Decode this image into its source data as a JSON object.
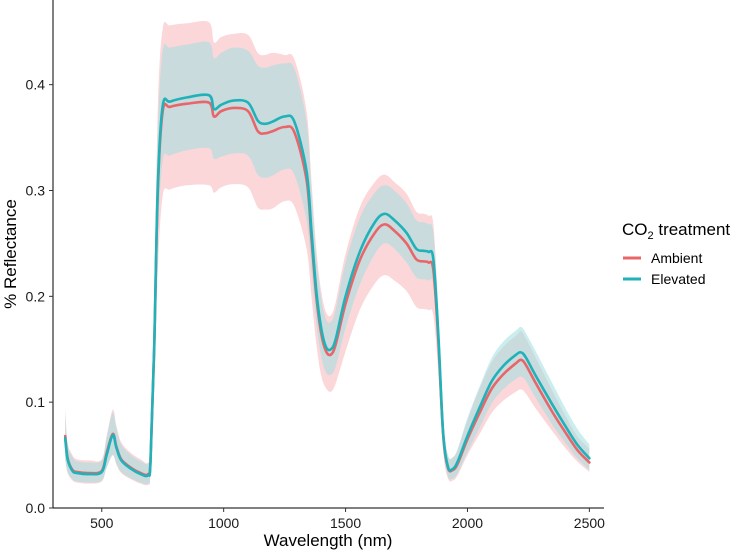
{
  "chart_data": {
    "type": "line",
    "title": "",
    "xlabel": "Wavelength (nm)",
    "ylabel": "% Reflectance",
    "xlim": [
      300,
      2560
    ],
    "ylim": [
      0,
      0.48
    ],
    "x_ticks": [
      500,
      1000,
      1500,
      2000,
      2500
    ],
    "y_ticks": [
      0.0,
      0.1,
      0.2,
      0.3,
      0.4
    ],
    "x_tick_labels": [
      "500",
      "1000",
      "1500",
      "2000",
      "2500"
    ],
    "y_tick_labels": [
      "0.0",
      "0.1",
      "0.2",
      "0.3",
      "0.4"
    ],
    "grid": false,
    "legend": {
      "title_main": "CO",
      "title_sub": "2",
      "title_rest": " treatment",
      "placement": "right",
      "entries": [
        "Ambient",
        "Elevated"
      ]
    },
    "x": [
      350,
      360,
      380,
      400,
      450,
      500,
      520,
      545,
      560,
      580,
      620,
      660,
      690,
      700,
      715,
      730,
      750,
      780,
      850,
      940,
      960,
      990,
      1040,
      1100,
      1140,
      1170,
      1200,
      1250,
      1290,
      1340,
      1360,
      1380,
      1400,
      1420,
      1440,
      1460,
      1500,
      1560,
      1620,
      1660,
      1700,
      1750,
      1790,
      1820,
      1840,
      1860,
      1880,
      1900,
      1920,
      1940,
      1960,
      2000,
      2050,
      2100,
      2150,
      2200,
      2220,
      2240,
      2280,
      2350,
      2400,
      2450,
      2500
    ],
    "series": [
      {
        "name": "Ambient",
        "color": "#E8666A",
        "band_color": "#F8B7B9",
        "mean": [
          0.068,
          0.047,
          0.036,
          0.034,
          0.033,
          0.035,
          0.052,
          0.07,
          0.058,
          0.046,
          0.038,
          0.033,
          0.032,
          0.045,
          0.15,
          0.3,
          0.375,
          0.379,
          0.382,
          0.383,
          0.37,
          0.375,
          0.378,
          0.375,
          0.356,
          0.354,
          0.356,
          0.36,
          0.355,
          0.31,
          0.255,
          0.2,
          0.165,
          0.148,
          0.145,
          0.155,
          0.193,
          0.235,
          0.26,
          0.268,
          0.262,
          0.25,
          0.235,
          0.233,
          0.232,
          0.225,
          0.16,
          0.07,
          0.038,
          0.036,
          0.042,
          0.065,
          0.09,
          0.113,
          0.127,
          0.137,
          0.14,
          0.135,
          0.118,
          0.09,
          0.072,
          0.055,
          0.043
        ],
        "upper": [
          0.095,
          0.062,
          0.05,
          0.046,
          0.045,
          0.046,
          0.068,
          0.093,
          0.078,
          0.062,
          0.052,
          0.046,
          0.043,
          0.06,
          0.2,
          0.38,
          0.453,
          0.456,
          0.458,
          0.459,
          0.44,
          0.445,
          0.448,
          0.447,
          0.43,
          0.428,
          0.43,
          0.428,
          0.424,
          0.375,
          0.31,
          0.245,
          0.205,
          0.185,
          0.182,
          0.195,
          0.24,
          0.285,
          0.308,
          0.315,
          0.308,
          0.297,
          0.28,
          0.278,
          0.276,
          0.268,
          0.19,
          0.088,
          0.05,
          0.048,
          0.055,
          0.083,
          0.113,
          0.138,
          0.153,
          0.163,
          0.167,
          0.16,
          0.142,
          0.11,
          0.088,
          0.068,
          0.056
        ],
        "lower": [
          0.046,
          0.033,
          0.026,
          0.024,
          0.023,
          0.025,
          0.038,
          0.05,
          0.041,
          0.033,
          0.027,
          0.023,
          0.022,
          0.032,
          0.11,
          0.225,
          0.295,
          0.301,
          0.305,
          0.305,
          0.298,
          0.303,
          0.306,
          0.303,
          0.284,
          0.282,
          0.283,
          0.29,
          0.285,
          0.245,
          0.2,
          0.155,
          0.125,
          0.113,
          0.11,
          0.118,
          0.148,
          0.188,
          0.212,
          0.22,
          0.215,
          0.205,
          0.19,
          0.188,
          0.187,
          0.182,
          0.13,
          0.054,
          0.028,
          0.026,
          0.031,
          0.05,
          0.07,
          0.09,
          0.102,
          0.11,
          0.112,
          0.108,
          0.094,
          0.072,
          0.057,
          0.044,
          0.034
        ]
      },
      {
        "name": "Elevated",
        "color": "#20B2B8",
        "band_color": "#A0DEE0",
        "mean": [
          0.066,
          0.046,
          0.035,
          0.033,
          0.032,
          0.034,
          0.05,
          0.069,
          0.057,
          0.045,
          0.037,
          0.032,
          0.031,
          0.044,
          0.152,
          0.305,
          0.38,
          0.384,
          0.388,
          0.39,
          0.377,
          0.381,
          0.385,
          0.383,
          0.366,
          0.363,
          0.365,
          0.37,
          0.365,
          0.318,
          0.262,
          0.205,
          0.17,
          0.152,
          0.15,
          0.16,
          0.2,
          0.243,
          0.27,
          0.278,
          0.272,
          0.26,
          0.245,
          0.243,
          0.242,
          0.235,
          0.166,
          0.072,
          0.039,
          0.037,
          0.044,
          0.068,
          0.095,
          0.12,
          0.135,
          0.145,
          0.147,
          0.142,
          0.125,
          0.097,
          0.078,
          0.06,
          0.047
        ],
        "upper": [
          0.088,
          0.06,
          0.048,
          0.044,
          0.043,
          0.045,
          0.066,
          0.09,
          0.075,
          0.06,
          0.05,
          0.044,
          0.042,
          0.058,
          0.185,
          0.355,
          0.432,
          0.435,
          0.438,
          0.44,
          0.425,
          0.43,
          0.435,
          0.432,
          0.418,
          0.416,
          0.418,
          0.42,
          0.415,
          0.365,
          0.3,
          0.237,
          0.198,
          0.178,
          0.176,
          0.188,
          0.232,
          0.275,
          0.298,
          0.305,
          0.3,
          0.288,
          0.272,
          0.27,
          0.268,
          0.26,
          0.185,
          0.085,
          0.05,
          0.048,
          0.056,
          0.085,
          0.115,
          0.142,
          0.158,
          0.168,
          0.171,
          0.165,
          0.148,
          0.117,
          0.095,
          0.075,
          0.06
        ],
        "lower": [
          0.046,
          0.034,
          0.027,
          0.025,
          0.024,
          0.026,
          0.038,
          0.05,
          0.042,
          0.034,
          0.028,
          0.024,
          0.023,
          0.033,
          0.12,
          0.255,
          0.328,
          0.333,
          0.338,
          0.34,
          0.33,
          0.332,
          0.335,
          0.333,
          0.315,
          0.312,
          0.314,
          0.32,
          0.315,
          0.272,
          0.225,
          0.175,
          0.143,
          0.128,
          0.126,
          0.134,
          0.17,
          0.212,
          0.24,
          0.25,
          0.245,
          0.232,
          0.218,
          0.216,
          0.215,
          0.21,
          0.148,
          0.06,
          0.03,
          0.028,
          0.033,
          0.053,
          0.076,
          0.099,
          0.113,
          0.122,
          0.124,
          0.12,
          0.104,
          0.078,
          0.062,
          0.047,
          0.036
        ]
      }
    ]
  }
}
